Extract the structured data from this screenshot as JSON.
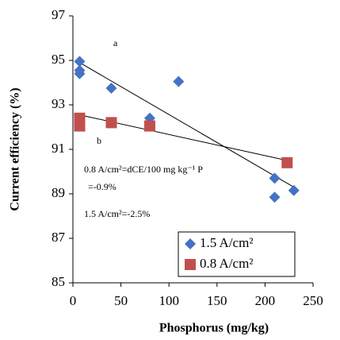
{
  "chart_data": {
    "type": "scatter",
    "xlabel": "Phosphorus (mg/kg)",
    "ylabel": "Current efficiency (%)",
    "xlim": [
      0,
      250
    ],
    "xticks": [
      0,
      50,
      100,
      150,
      200,
      250
    ],
    "ylim": [
      85,
      97
    ],
    "yticks": [
      85,
      87,
      89,
      91,
      93,
      95,
      97
    ],
    "series": [
      {
        "name": "1.5 A/cm²",
        "color": "#4472c4",
        "marker": "diamond",
        "x": [
          7,
          7,
          7,
          40,
          80,
          110,
          210,
          210,
          230
        ],
        "values": [
          94.95,
          94.55,
          94.4,
          93.75,
          92.4,
          94.05,
          89.7,
          88.85,
          89.15
        ],
        "trend_x": [
          7,
          230
        ],
        "trend_values": [
          94.9,
          89.3
        ]
      },
      {
        "name": "0.8 A/cm²",
        "color": "#c0504d",
        "marker": "square",
        "x": [
          7,
          7,
          7,
          40,
          80,
          223
        ],
        "values": [
          92.4,
          92.2,
          92.05,
          92.2,
          92.05,
          90.4
        ],
        "trend_x": [
          7,
          223
        ],
        "trend_values": [
          92.55,
          90.5
        ]
      }
    ],
    "annotations": [
      "a",
      "b",
      "0.8 A/cm²=dCE/100 mg kg⁻¹ P",
      "=-0.9%",
      "1.5 A/cm²=-2.5%"
    ]
  }
}
